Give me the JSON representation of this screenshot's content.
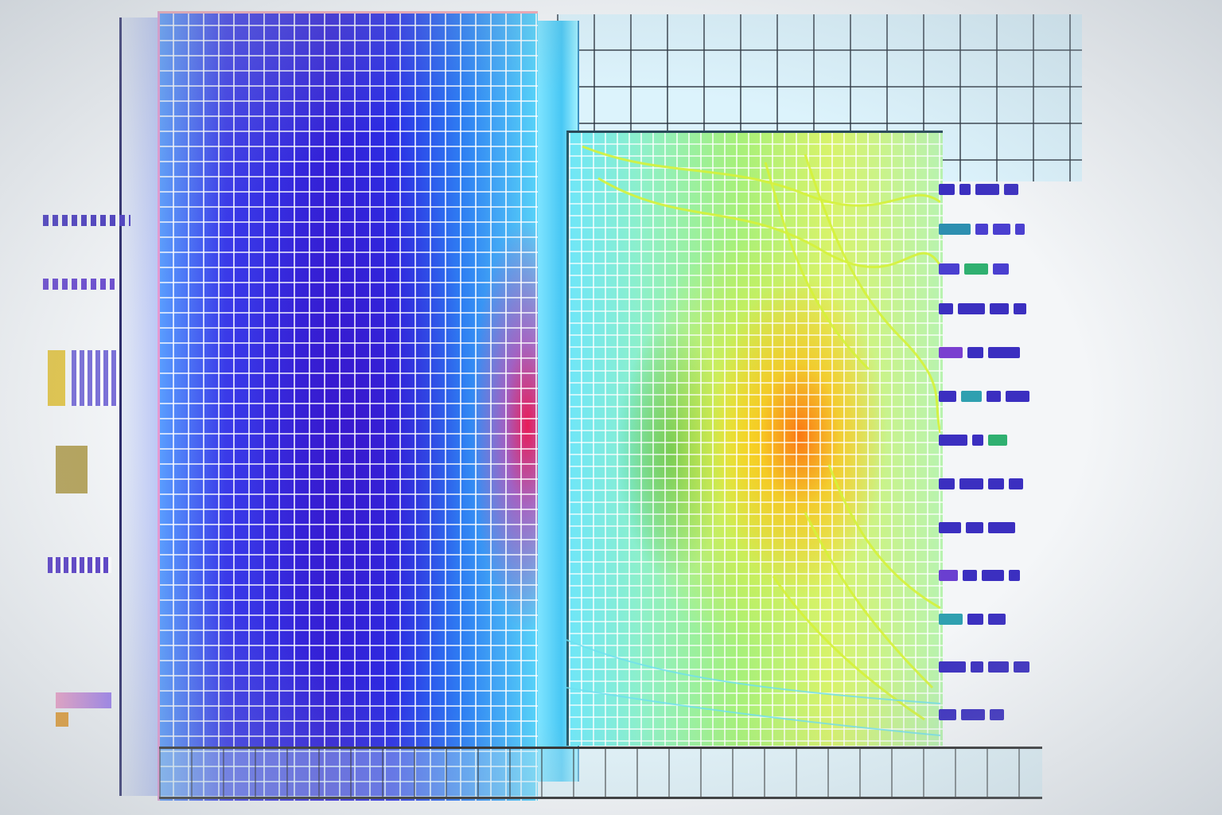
{
  "colors": {
    "background": "#f4f6f8",
    "blue_panel": "#3222d8",
    "magenta_accent": "#f01450",
    "cyan_strip": "#47c7f4",
    "green_panel": "#a6f07a",
    "yellow_accent": "#faeb28",
    "orange_accent": "#ff640a",
    "grid_dark": "#283238"
  }
}
